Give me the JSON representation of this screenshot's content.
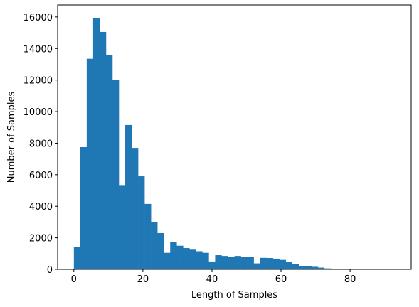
{
  "chart_data": {
    "type": "bar",
    "subtype": "histogram",
    "title": "",
    "xlabel": "Length of Samples",
    "ylabel": "Number of Samples",
    "xlim": [
      -4.7,
      97.7
    ],
    "ylim": [
      0,
      16760
    ],
    "x_ticks": [
      0,
      20,
      40,
      60,
      80
    ],
    "y_ticks": [
      0,
      2000,
      4000,
      6000,
      8000,
      10000,
      12000,
      14000,
      16000
    ],
    "bin_edges": [
      0,
      1.86,
      3.72,
      5.58,
      7.44,
      9.3,
      11.16,
      13.02,
      14.88,
      16.74,
      18.6,
      20.46,
      22.32,
      24.18,
      26.04,
      27.9,
      29.76,
      31.62,
      33.48,
      35.34,
      37.2,
      39.06,
      40.92,
      42.78,
      44.64,
      46.5,
      48.36,
      50.22,
      52.08,
      53.94,
      55.8,
      57.66,
      59.52,
      61.38,
      63.24,
      65.1,
      66.96,
      68.82,
      70.68,
      72.54,
      74.4,
      76.26,
      78.12,
      79.98,
      81.84,
      83.7,
      85.56,
      87.42,
      89.28,
      91.14,
      93.0
    ],
    "values": [
      1400,
      7750,
      13350,
      15950,
      15050,
      13600,
      12000,
      5300,
      9150,
      7700,
      5900,
      4150,
      3000,
      2300,
      1050,
      1750,
      1500,
      1350,
      1250,
      1150,
      1050,
      500,
      900,
      850,
      780,
      850,
      780,
      780,
      380,
      730,
      720,
      680,
      600,
      450,
      330,
      180,
      220,
      160,
      110,
      60,
      40,
      20,
      10,
      5,
      3,
      2,
      1,
      1,
      1,
      1
    ],
    "bar_color": "#1f77b4",
    "grid": false,
    "legend": "none"
  }
}
